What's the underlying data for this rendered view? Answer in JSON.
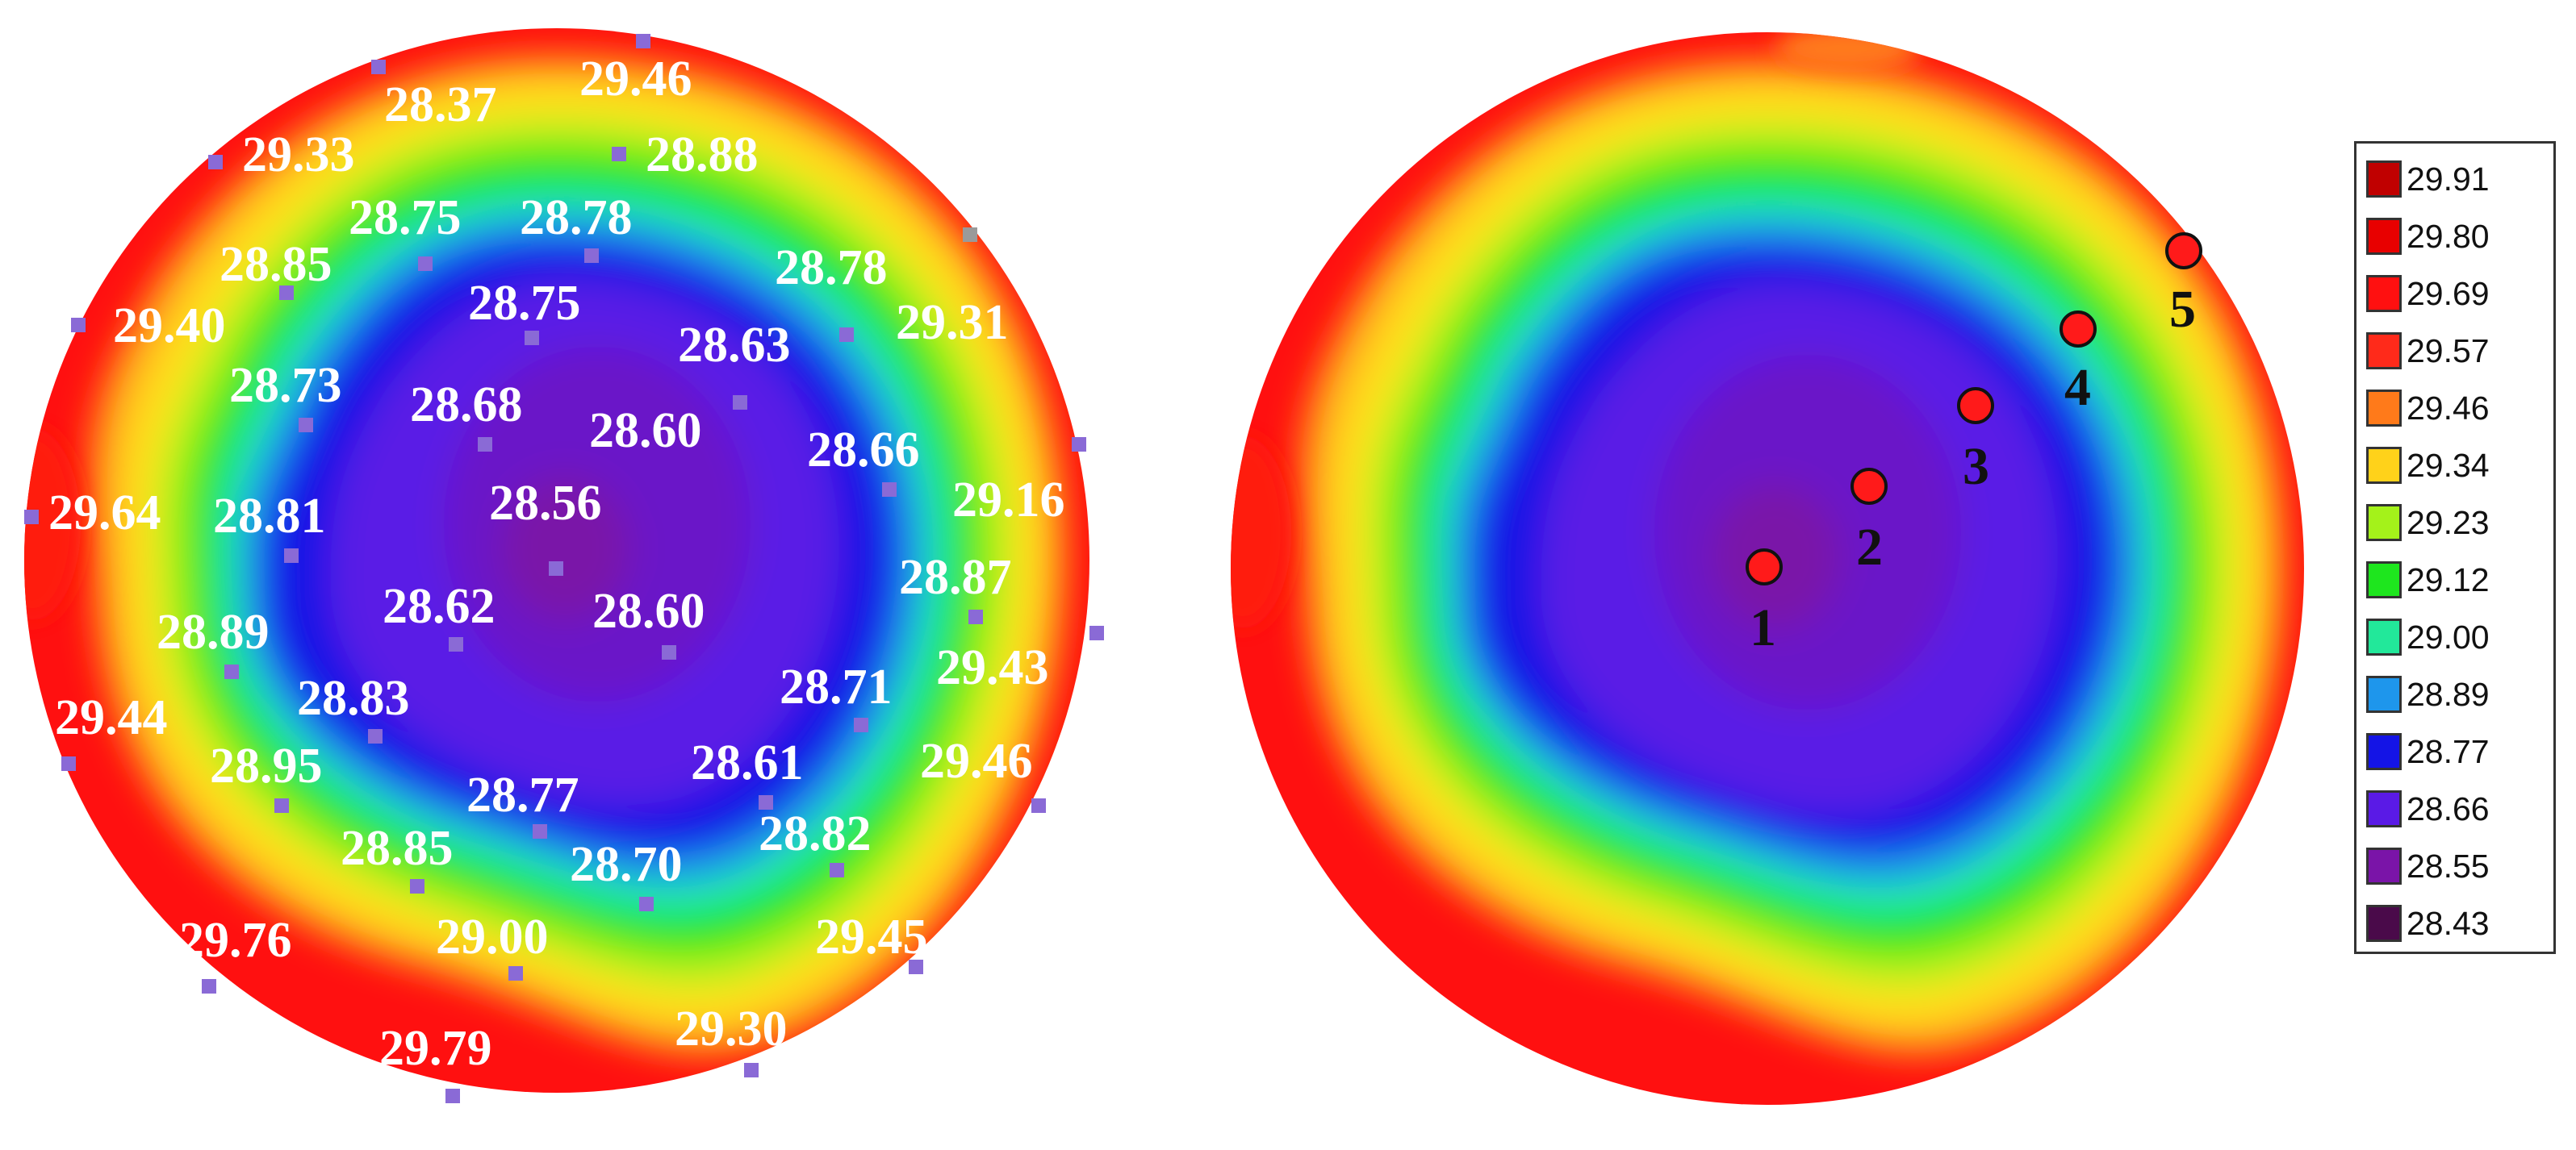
{
  "chart_data": {
    "type": "heatmap",
    "title": "",
    "colorbar": {
      "placement": "right",
      "entries": [
        {
          "value": "29.91",
          "color": "#c00000"
        },
        {
          "value": "29.80",
          "color": "#e80000"
        },
        {
          "value": "29.69",
          "color": "#ff1010"
        },
        {
          "value": "29.57",
          "color": "#ff2a1a"
        },
        {
          "value": "29.46",
          "color": "#ff7a1a"
        },
        {
          "value": "29.34",
          "color": "#ffd21a"
        },
        {
          "value": "29.23",
          "color": "#a4f21a"
        },
        {
          "value": "29.12",
          "color": "#1ee61e"
        },
        {
          "value": "29.00",
          "color": "#22e89a"
        },
        {
          "value": "28.89",
          "color": "#1e96ec"
        },
        {
          "value": "28.77",
          "color": "#1414e6"
        },
        {
          "value": "28.66",
          "color": "#5a1ae6"
        },
        {
          "value": "28.55",
          "color": "#7a14a8"
        },
        {
          "value": "28.43",
          "color": "#4a0a4a"
        }
      ]
    },
    "left_map": {
      "description_of_layers": [
        "blue core",
        "green ring",
        "yellow ring",
        "red edge"
      ],
      "points": [
        {
          "label": "29.46"
        },
        {
          "label": "28.37"
        },
        {
          "label": "29.33"
        },
        {
          "label": "28.88"
        },
        {
          "label": "28.75"
        },
        {
          "label": "28.78"
        },
        {
          "label": "28.85"
        },
        {
          "label": "28.78"
        },
        {
          "label": "28.75"
        },
        {
          "label": "29.40"
        },
        {
          "label": "29.31"
        },
        {
          "label": "28.63"
        },
        {
          "label": "28.73"
        },
        {
          "label": "28.68"
        },
        {
          "label": "28.60"
        },
        {
          "label": "28.66"
        },
        {
          "label": "29.64"
        },
        {
          "label": "28.81"
        },
        {
          "label": "28.56"
        },
        {
          "label": "29.16"
        },
        {
          "label": "28.87"
        },
        {
          "label": "28.62"
        },
        {
          "label": "28.60"
        },
        {
          "label": "28.89"
        },
        {
          "label": "29.43"
        },
        {
          "label": "28.83"
        },
        {
          "label": "28.71"
        },
        {
          "label": "29.44"
        },
        {
          "label": "28.95"
        },
        {
          "label": "28.61"
        },
        {
          "label": "29.46"
        },
        {
          "label": "28.77"
        },
        {
          "label": "28.82"
        },
        {
          "label": "28.85"
        },
        {
          "label": "28.70"
        },
        {
          "label": "29.00"
        },
        {
          "label": "29.76"
        },
        {
          "label": "29.45"
        },
        {
          "label": "29.79"
        },
        {
          "label": "29.30"
        }
      ]
    },
    "right_map": {
      "markers": [
        {
          "label": "1"
        },
        {
          "label": "2"
        },
        {
          "label": "3"
        },
        {
          "label": "4"
        },
        {
          "label": "5"
        }
      ]
    }
  }
}
